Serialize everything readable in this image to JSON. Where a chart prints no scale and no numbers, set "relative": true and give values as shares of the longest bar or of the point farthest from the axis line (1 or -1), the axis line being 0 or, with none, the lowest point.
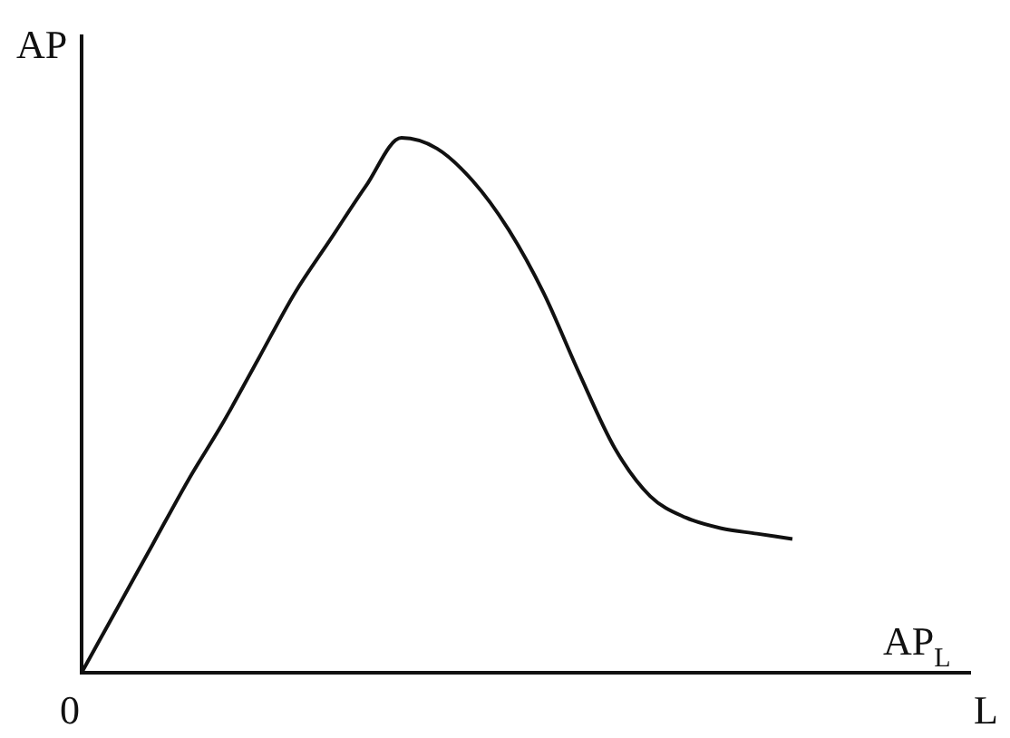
{
  "chart_data": {
    "type": "line",
    "relative": true,
    "xlabel": "L",
    "ylabel": "AP",
    "categories": [
      null,
      null,
      null,
      null,
      null,
      null,
      null,
      null,
      null,
      null,
      null,
      null,
      null,
      null,
      null,
      null,
      null,
      null,
      null,
      null,
      null,
      null,
      null,
      null,
      null,
      null
    ],
    "series": [
      {
        "color": "#111111",
        "values": [
          0,
          0.12,
          0.24,
          0.36,
          0.47,
          0.59,
          0.71,
          0.81,
          0.91,
          1,
          0.98,
          0.92,
          0.83,
          0.71,
          0.56,
          0.42,
          0.33,
          0.29,
          0.27,
          0.26,
          0.25,
          null,
          null,
          null,
          null,
          null
        ]
      }
    ],
    "annotations": [
      "0",
      "AP$_{L}$"
    ],
    "grid": false,
    "legend": false,
    "marker": "none",
    "line_style": "solid"
  }
}
